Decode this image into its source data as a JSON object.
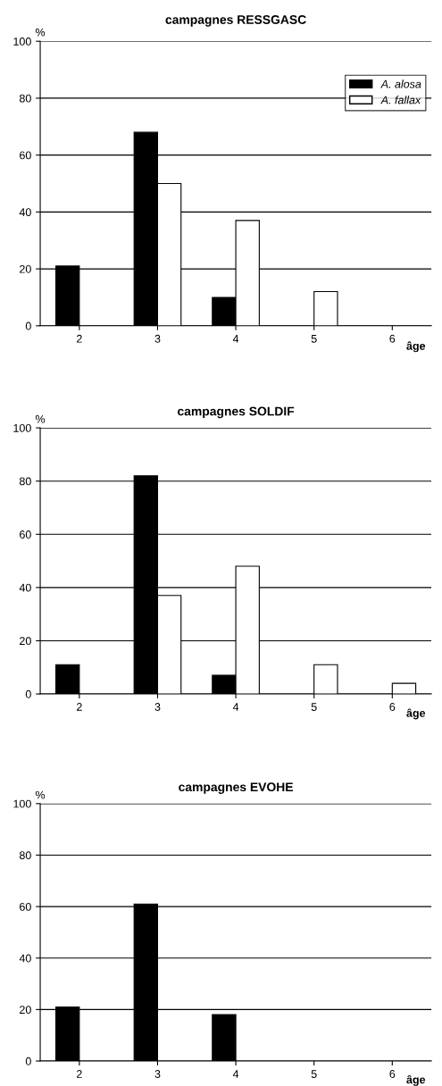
{
  "chart_data": [
    {
      "type": "bar",
      "title": "campagnes RESSGASC",
      "xlabel": "âge",
      "ylabel": "%",
      "categories": [
        "2",
        "3",
        "4",
        "5",
        "6"
      ],
      "ylim": [
        0,
        100
      ],
      "yticks": [
        0,
        20,
        40,
        60,
        80,
        100
      ],
      "grid": "y",
      "legend": "top right",
      "series": [
        {
          "name": "A. alosa",
          "color": "#000000",
          "values": [
            21,
            68,
            10,
            0,
            0
          ]
        },
        {
          "name": "A. fallax",
          "color": "#ffffff",
          "values": [
            0,
            50,
            37,
            12,
            0
          ]
        }
      ]
    },
    {
      "type": "bar",
      "title": "campagnes SOLDIF",
      "xlabel": "âge",
      "ylabel": "%",
      "categories": [
        "2",
        "3",
        "4",
        "5",
        "6"
      ],
      "ylim": [
        0,
        100
      ],
      "yticks": [
        0,
        20,
        40,
        60,
        80,
        100
      ],
      "grid": "y",
      "series": [
        {
          "color": "#000000",
          "values": [
            11,
            82,
            7,
            0,
            0
          ]
        },
        {
          "color": "#ffffff",
          "values": [
            0,
            37,
            48,
            11,
            4
          ]
        }
      ]
    },
    {
      "type": "bar",
      "title": "campagnes EVOHE",
      "xlabel": "âge",
      "ylabel": "%",
      "categories": [
        "2",
        "3",
        "4",
        "5",
        "6"
      ],
      "ylim": [
        0,
        100
      ],
      "yticks": [
        0,
        20,
        40,
        60,
        80,
        100
      ],
      "grid": "y",
      "series": [
        {
          "color": "#000000",
          "values": [
            21,
            61,
            18,
            0,
            0
          ]
        },
        {
          "color": "#ffffff",
          "values": [
            0,
            0,
            0,
            0,
            0
          ]
        }
      ]
    }
  ]
}
